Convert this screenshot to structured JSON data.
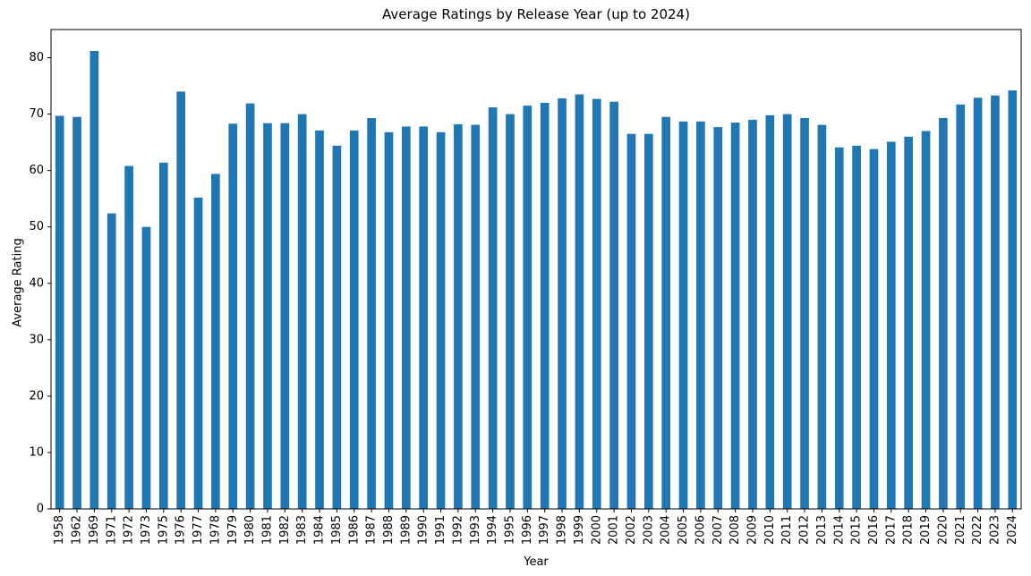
{
  "chart_data": {
    "type": "bar",
    "title": "Average Ratings by Release Year (up to 2024)",
    "xlabel": "Year",
    "ylabel": "Average Rating",
    "ylim": [
      0,
      85
    ],
    "yticks": [
      0,
      10,
      20,
      30,
      40,
      50,
      60,
      70,
      80
    ],
    "grid": false,
    "bar_color": "#1f77b4",
    "categories": [
      "1958",
      "1962",
      "1969",
      "1971",
      "1972",
      "1973",
      "1975",
      "1976",
      "1977",
      "1978",
      "1979",
      "1980",
      "1981",
      "1982",
      "1983",
      "1984",
      "1985",
      "1986",
      "1987",
      "1988",
      "1989",
      "1990",
      "1991",
      "1992",
      "1993",
      "1994",
      "1995",
      "1996",
      "1997",
      "1998",
      "1999",
      "2000",
      "2001",
      "2002",
      "2003",
      "2004",
      "2005",
      "2006",
      "2007",
      "2008",
      "2009",
      "2010",
      "2011",
      "2012",
      "2013",
      "2014",
      "2015",
      "2016",
      "2017",
      "2018",
      "2019",
      "2020",
      "2021",
      "2022",
      "2023",
      "2024"
    ],
    "values": [
      69.7,
      69.5,
      81.2,
      52.4,
      60.8,
      50.0,
      61.4,
      74.0,
      55.2,
      59.4,
      68.3,
      71.9,
      68.4,
      68.4,
      70.0,
      67.1,
      64.4,
      67.1,
      69.3,
      66.8,
      67.8,
      67.8,
      66.8,
      68.2,
      68.1,
      71.2,
      70.0,
      71.5,
      72.0,
      72.8,
      73.5,
      72.7,
      72.2,
      66.5,
      66.5,
      69.5,
      68.7,
      68.7,
      67.7,
      68.5,
      69.0,
      69.8,
      70.0,
      69.3,
      68.1,
      64.1,
      64.4,
      63.8,
      65.1,
      66.0,
      67.0,
      69.3,
      71.7,
      72.9,
      73.3,
      74.2
    ]
  }
}
